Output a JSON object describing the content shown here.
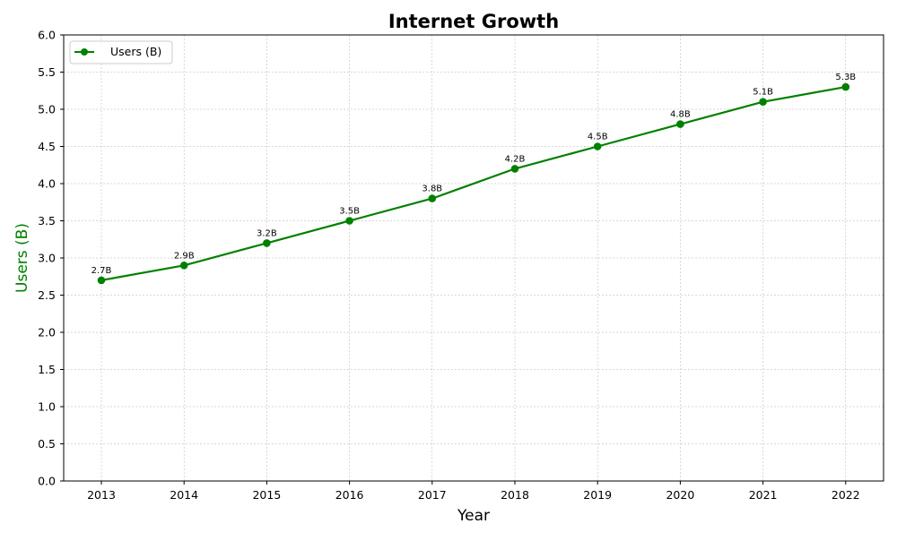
{
  "chart_data": {
    "type": "line",
    "title": "Internet Growth",
    "xlabel": "Year",
    "ylabel": "Users (B)",
    "x": [
      "2013",
      "2014",
      "2015",
      "2016",
      "2017",
      "2018",
      "2019",
      "2020",
      "2021",
      "2022"
    ],
    "series": [
      {
        "name": "Users (B)",
        "values": [
          2.7,
          2.9,
          3.2,
          3.5,
          3.8,
          4.2,
          4.5,
          4.8,
          5.1,
          5.3
        ],
        "labels": [
          "2.7B",
          "2.9B",
          "3.2B",
          "3.5B",
          "3.8B",
          "4.2B",
          "4.5B",
          "4.8B",
          "5.1B",
          "5.3B"
        ],
        "color": "#008000",
        "marker": "circle"
      }
    ],
    "ylim": [
      0.0,
      6.0
    ],
    "yticks": [
      "0.0",
      "0.5",
      "1.0",
      "1.5",
      "2.0",
      "2.5",
      "3.0",
      "3.5",
      "4.0",
      "4.5",
      "5.0",
      "5.5",
      "6.0"
    ],
    "grid": true,
    "legend_position": "top-left",
    "ylabel_color": "#008000"
  }
}
